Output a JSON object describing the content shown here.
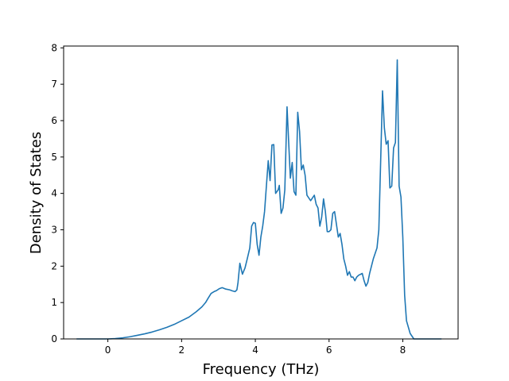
{
  "chart_data": {
    "type": "line",
    "title": "",
    "xlabel": "Frequency (THz)",
    "ylabel": "Density of States",
    "xlim": [
      -1.2,
      9.5
    ],
    "ylim": [
      0,
      8.05
    ],
    "xticks": [
      0,
      2,
      4,
      6,
      8
    ],
    "yticks": [
      0,
      1,
      2,
      3,
      4,
      5,
      6,
      7,
      8
    ],
    "grid": false,
    "legend": "none",
    "series": [
      {
        "color": "#1f77b4",
        "x": [
          -0.85,
          -0.4,
          0.0,
          0.2,
          0.4,
          0.6,
          0.8,
          1.0,
          1.2,
          1.4,
          1.6,
          1.8,
          2.0,
          2.2,
          2.4,
          2.55,
          2.65,
          2.72,
          2.8,
          2.88,
          2.95,
          3.02,
          3.1,
          3.2,
          3.3,
          3.38,
          3.45,
          3.5,
          3.53,
          3.58,
          3.65,
          3.72,
          3.78,
          3.85,
          3.9,
          3.95,
          4.0,
          4.05,
          4.1,
          4.15,
          4.2,
          4.25,
          4.3,
          4.35,
          4.4,
          4.45,
          4.5,
          4.55,
          4.62,
          4.65,
          4.7,
          4.75,
          4.8,
          4.86,
          4.9,
          4.95,
          5.0,
          5.05,
          5.1,
          5.15,
          5.2,
          5.25,
          5.3,
          5.35,
          5.4,
          5.5,
          5.6,
          5.65,
          5.7,
          5.75,
          5.8,
          5.85,
          5.9,
          5.95,
          6.0,
          6.05,
          6.1,
          6.15,
          6.2,
          6.25,
          6.3,
          6.35,
          6.4,
          6.45,
          6.5,
          6.55,
          6.6,
          6.65,
          6.7,
          6.75,
          6.8,
          6.9,
          6.95,
          7.0,
          7.05,
          7.1,
          7.2,
          7.3,
          7.35,
          7.4,
          7.45,
          7.5,
          7.55,
          7.6,
          7.65,
          7.7,
          7.75,
          7.8,
          7.85,
          7.9,
          7.95,
          8.0,
          8.05,
          8.1,
          8.2,
          8.3,
          8.5,
          9.05
        ],
        "y": [
          0.0,
          0.0,
          0.0,
          0.01,
          0.03,
          0.06,
          0.1,
          0.14,
          0.19,
          0.25,
          0.32,
          0.4,
          0.5,
          0.6,
          0.75,
          0.88,
          1.0,
          1.12,
          1.25,
          1.3,
          1.33,
          1.38,
          1.41,
          1.37,
          1.35,
          1.32,
          1.3,
          1.35,
          1.55,
          2.08,
          1.78,
          1.95,
          2.2,
          2.5,
          3.1,
          3.2,
          3.18,
          2.6,
          2.3,
          2.8,
          3.1,
          3.5,
          4.2,
          4.9,
          4.35,
          5.33,
          5.34,
          4.0,
          4.1,
          4.22,
          3.45,
          3.6,
          4.1,
          6.38,
          5.5,
          4.42,
          4.85,
          4.05,
          3.95,
          6.23,
          5.7,
          4.65,
          4.78,
          4.5,
          3.95,
          3.8,
          3.95,
          3.7,
          3.6,
          3.1,
          3.35,
          3.85,
          3.5,
          2.95,
          2.95,
          3.0,
          3.45,
          3.5,
          3.15,
          2.8,
          2.9,
          2.6,
          2.2,
          2.0,
          1.75,
          1.85,
          1.7,
          1.7,
          1.6,
          1.7,
          1.75,
          1.8,
          1.6,
          1.45,
          1.55,
          1.8,
          2.2,
          2.5,
          3.0,
          4.9,
          6.82,
          5.8,
          5.35,
          5.45,
          4.15,
          4.2,
          5.25,
          5.4,
          7.67,
          4.2,
          3.9,
          2.8,
          1.2,
          0.5,
          0.15,
          0.0,
          0.0,
          0.0
        ]
      }
    ]
  }
}
